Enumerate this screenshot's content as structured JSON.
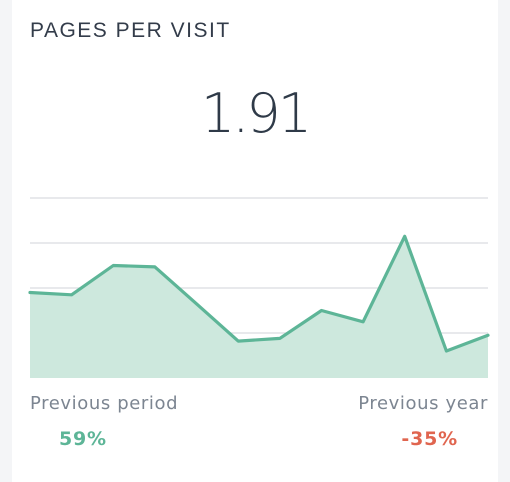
{
  "widget": {
    "title": "PAGES PER VISIT",
    "value": "1.91"
  },
  "colors": {
    "line": "#5db597",
    "fill": "#cde8dd",
    "grid": "#d9dce0",
    "positive": "#5db597",
    "negative": "#e0654f"
  },
  "chart_data": {
    "type": "area",
    "title": "",
    "xlabel": "",
    "ylabel": "",
    "ylim": [
      0,
      4
    ],
    "grid": true,
    "gridlines": [
      1,
      2,
      3,
      4
    ],
    "values": [
      1.9,
      1.85,
      2.5,
      2.47,
      1.65,
      0.82,
      0.88,
      1.5,
      1.25,
      3.15,
      0.6,
      0.95
    ]
  },
  "comparison": {
    "previous_period": {
      "label": "Previous period",
      "value": "59%"
    },
    "previous_year": {
      "label": "Previous year",
      "value": "-35%"
    }
  }
}
